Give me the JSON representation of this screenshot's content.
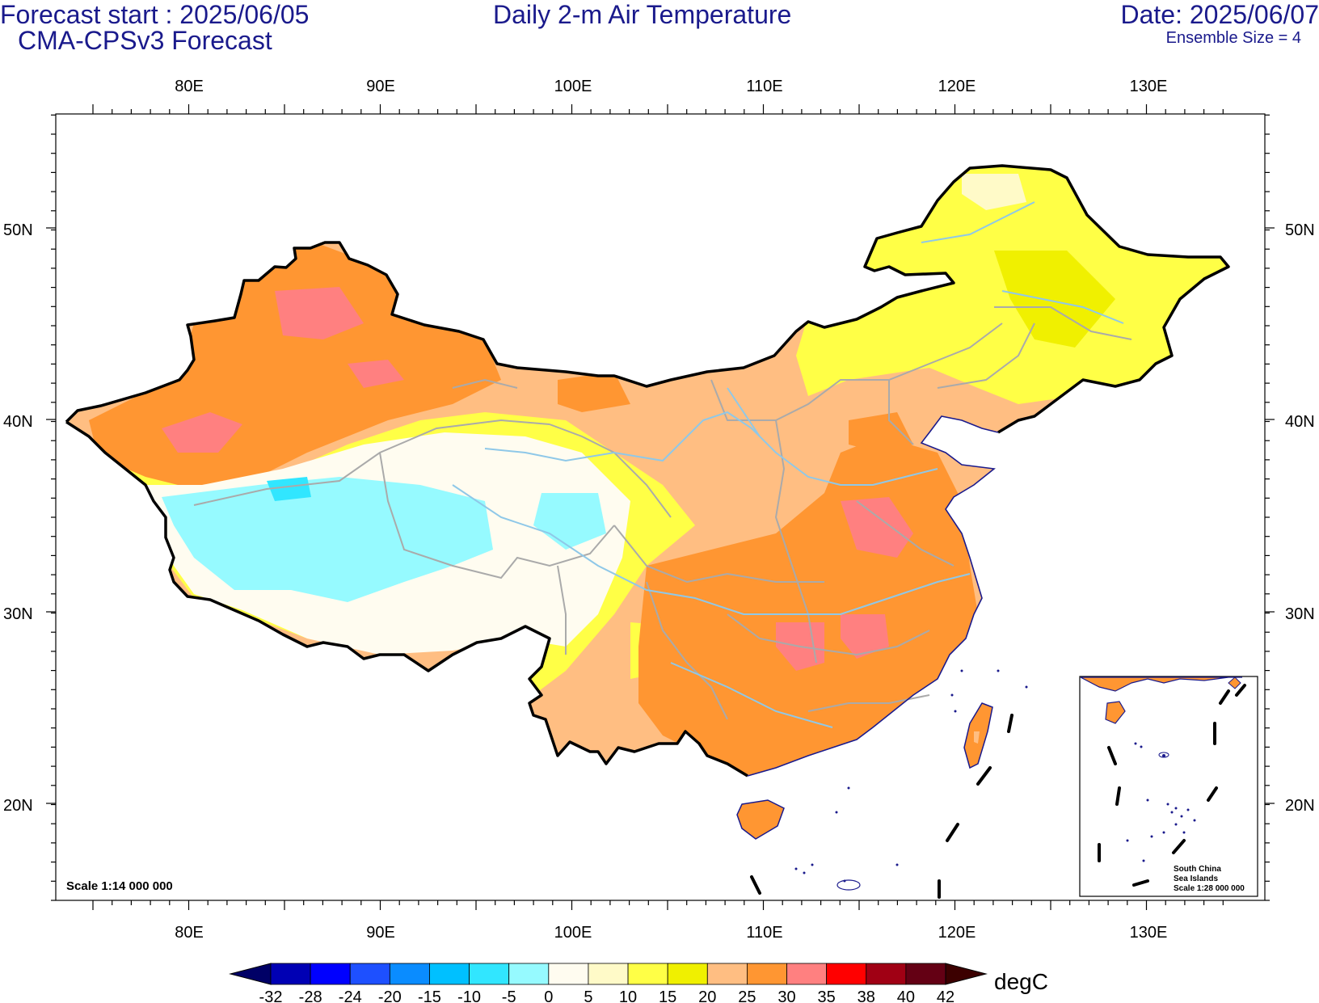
{
  "header": {
    "forecast_start": "Forecast start : 2025/06/05",
    "model": "CMA-CPSv3 Forecast",
    "title": "Daily 2-m Air Temperature",
    "date": "Date: 2025/06/07",
    "ensemble": "Ensemble Size = 4"
  },
  "map": {
    "lon_ticks": [
      "80E",
      "90E",
      "100E",
      "110E",
      "120E",
      "130E"
    ],
    "lat_ticks": [
      "50N",
      "40N",
      "30N",
      "20N"
    ],
    "scale_text": "Scale 1:14 000 000",
    "inset": {
      "line1": "South China",
      "line2": "Sea Islands",
      "line3": "Scale 1:28 000 000"
    },
    "colors": {
      "border": "#000000",
      "province": "#aaaaaa",
      "river": "#8fc8e8",
      "coast": "#1a1a8c"
    }
  },
  "colorbar": {
    "unit": "degC",
    "levels": [
      "-32",
      "-28",
      "-24",
      "-20",
      "-15",
      "-10",
      "-5",
      "0",
      "5",
      "10",
      "15",
      "20",
      "25",
      "30",
      "35",
      "38",
      "40",
      "42"
    ],
    "colors": [
      "#000066",
      "#0000b4",
      "#0000ff",
      "#1e50ff",
      "#0a8cff",
      "#00c0ff",
      "#31e6ff",
      "#96faff",
      "#fffcf0",
      "#fffac8",
      "#ffff46",
      "#f0f000",
      "#ffbe82",
      "#ff9632",
      "#ff8080",
      "#ff0000",
      "#a00014",
      "#640014",
      "#3c0000"
    ]
  }
}
